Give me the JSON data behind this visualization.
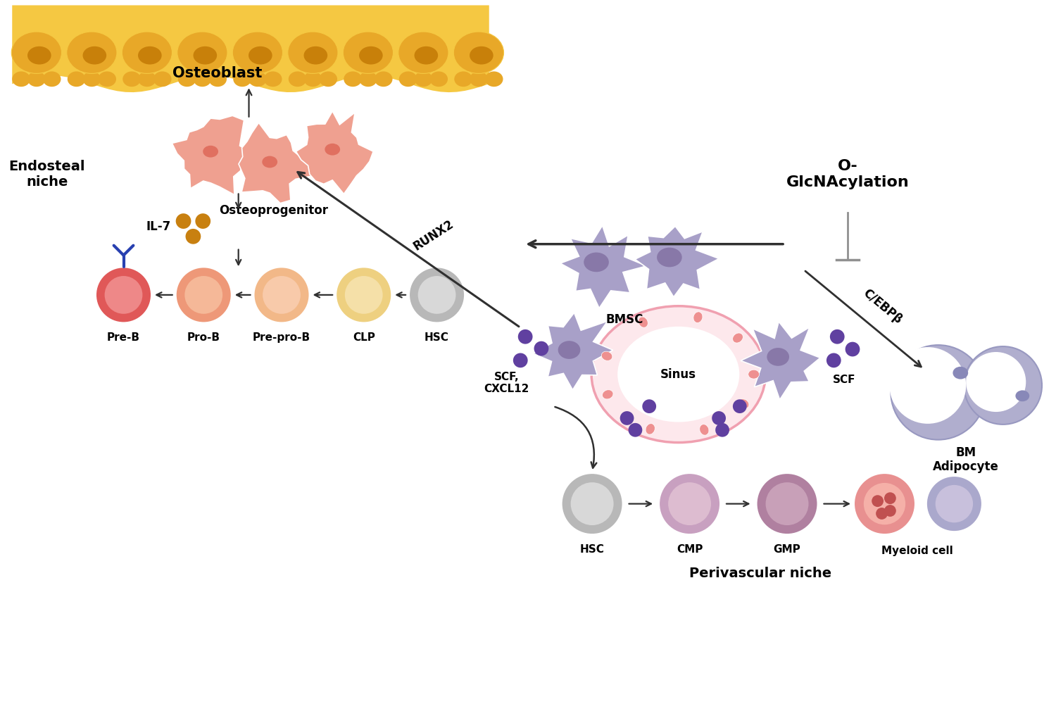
{
  "bg_color": "#ffffff",
  "ob_fill": "#F5C842",
  "ob_body": "#E8A828",
  "ob_nucleus": "#C8800A",
  "ob_label": "Osteoblast",
  "op_body": "#EFA090",
  "op_nucleus": "#E07060",
  "op_label": "Osteoprogenitor",
  "endosteal_label": "Endosteal\nniche",
  "perivascular_label": "Perivascular niche",
  "il7_label": "IL-7",
  "il7_color": "#C88010",
  "preB_outer": "#E05858",
  "preB_inner": "#EE8888",
  "preB_label": "Pre-B",
  "proB_outer": "#EE9878",
  "proB_inner": "#F5B898",
  "proB_label": "Pro-B",
  "preproB_outer": "#F2B888",
  "preproB_inner": "#F8CAAA",
  "preproB_label": "Pre-pro-B",
  "clp_outer": "#EED080",
  "clp_inner": "#F5E0A8",
  "clp_label": "CLP",
  "hsc_outer": "#B8B8B8",
  "hsc_inner": "#D8D8D8",
  "hsc_label": "HSC",
  "bmsc_fill": "#A8A0C8",
  "bmsc_nucleus": "#8878A8",
  "bmsc_label": "BMSC",
  "sinus_ring": "#F0A0B0",
  "sinus_bg": "#FDE8EC",
  "sinus_dot": "#EE9090",
  "sinus_label": "Sinus",
  "bm_fill": "#B0AECE",
  "bm_nucleus": "#8888B8",
  "bm_label": "BM\nAdipocyte",
  "cmp_outer": "#C8A0C0",
  "cmp_inner": "#DDBCD0",
  "cmp_label": "CMP",
  "gmp_outer": "#B080A0",
  "gmp_inner": "#C8A0B8",
  "gmp_label": "GMP",
  "myeloid1_outer": "#E89090",
  "myeloid1_inner": "#F5B0A8",
  "myeloid1_gran": "#C05050",
  "myeloid2_outer": "#AAA8CC",
  "myeloid2_inner": "#C8C0DC",
  "myeloid_label": "Myeloid cell",
  "scf_color": "#6040A0",
  "scf_cxcl12_label": "SCF,\nCXCL12",
  "scf_label": "SCF",
  "oglcnac_label": "O-\nGlcNAcylation",
  "runx2_label": "RUNX2",
  "cebpb_label": "C/EBPβ",
  "arrow_dark": "#303030",
  "arrow_gray": "#909090",
  "inhibit_gray": "#909090"
}
